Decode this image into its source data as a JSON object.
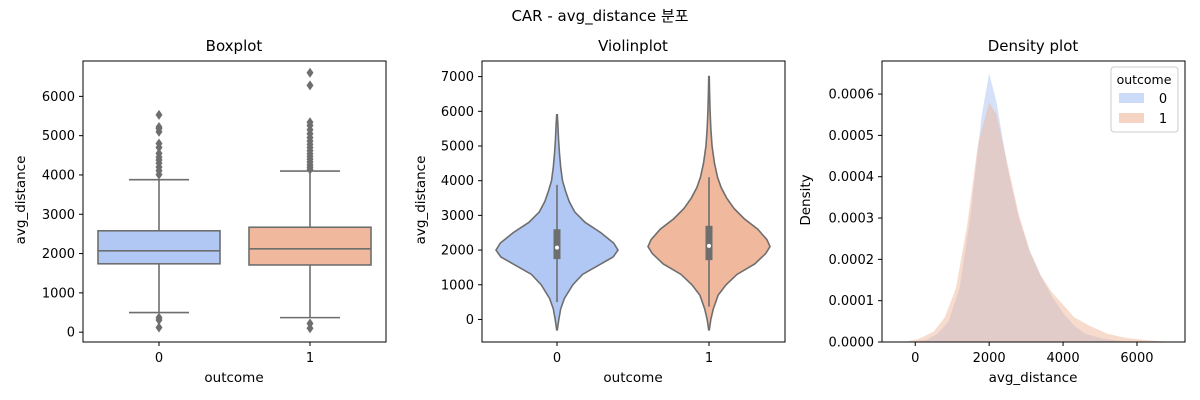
{
  "suptitle": "CAR - avg_distance 분포",
  "colors": {
    "class0": "#b1c8f4",
    "class1": "#f0b89c",
    "edge": "#6e6e6e",
    "axis": "#000000"
  },
  "chart_data": [
    {
      "type": "boxplot",
      "title": "Boxplot",
      "xlabel": "outcome",
      "ylabel": "avg_distance",
      "categories": [
        "0",
        "1"
      ],
      "ylim": [
        -250,
        6900
      ],
      "yticks": [
        "0",
        "1000",
        "2000",
        "3000",
        "4000",
        "5000",
        "6000"
      ],
      "series": [
        {
          "category": "0",
          "whisker_low": 500,
          "q1": 1740,
          "median": 2070,
          "q3": 2580,
          "whisker_high": 3880,
          "outliers": [
            120,
            310,
            370,
            4010,
            4110,
            4200,
            4300,
            4380,
            4450,
            4550,
            4700,
            4800,
            5100,
            5180,
            5220,
            5530
          ]
        },
        {
          "category": "1",
          "whisker_low": 370,
          "q1": 1710,
          "median": 2120,
          "q3": 2670,
          "whisker_high": 4100,
          "outliers": [
            100,
            220,
            4140,
            4200,
            4260,
            4330,
            4400,
            4470,
            4540,
            4620,
            4700,
            4780,
            4860,
            4950,
            5050,
            5150,
            5260,
            5340,
            6280,
            6600
          ]
        }
      ]
    },
    {
      "type": "violin",
      "title": "Violinplot",
      "xlabel": "outcome",
      "ylabel": "avg_distance",
      "categories": [
        "0",
        "1"
      ],
      "ylim": [
        -650,
        7450
      ],
      "yticks": [
        "0",
        "1000",
        "2000",
        "3000",
        "4000",
        "5000",
        "6000",
        "7000"
      ],
      "series": [
        {
          "category": "0",
          "min": -300,
          "max": 5900,
          "q1": 1740,
          "median": 2070,
          "q3": 2600,
          "whisker_low": 500,
          "whisker_high": 3880,
          "density": [
            [
              -300,
              0.005
            ],
            [
              0,
              0.03
            ],
            [
              300,
              0.06
            ],
            [
              600,
              0.12
            ],
            [
              1000,
              0.26
            ],
            [
              1300,
              0.42
            ],
            [
              1600,
              0.72
            ],
            [
              1800,
              0.92
            ],
            [
              2000,
              1.0
            ],
            [
              2200,
              0.93
            ],
            [
              2500,
              0.72
            ],
            [
              2800,
              0.46
            ],
            [
              3100,
              0.29
            ],
            [
              3400,
              0.2
            ],
            [
              3700,
              0.14
            ],
            [
              4000,
              0.09
            ],
            [
              4400,
              0.06
            ],
            [
              4800,
              0.04
            ],
            [
              5200,
              0.025
            ],
            [
              5600,
              0.015
            ],
            [
              5900,
              0.005
            ]
          ]
        },
        {
          "category": "1",
          "min": -300,
          "max": 7000,
          "q1": 1710,
          "median": 2120,
          "q3": 2700,
          "whisker_low": 370,
          "whisker_high": 4100,
          "density": [
            [
              -300,
              0.005
            ],
            [
              0,
              0.03
            ],
            [
              300,
              0.07
            ],
            [
              700,
              0.15
            ],
            [
              1000,
              0.28
            ],
            [
              1300,
              0.46
            ],
            [
              1600,
              0.75
            ],
            [
              1900,
              0.93
            ],
            [
              2100,
              1.0
            ],
            [
              2300,
              0.95
            ],
            [
              2600,
              0.8
            ],
            [
              2900,
              0.58
            ],
            [
              3200,
              0.41
            ],
            [
              3500,
              0.29
            ],
            [
              3800,
              0.2
            ],
            [
              4100,
              0.14
            ],
            [
              4500,
              0.09
            ],
            [
              5000,
              0.05
            ],
            [
              5500,
              0.03
            ],
            [
              6000,
              0.018
            ],
            [
              6500,
              0.01
            ],
            [
              7000,
              0.004
            ]
          ]
        }
      ]
    },
    {
      "type": "area",
      "title": "Density plot",
      "xlabel": "avg_distance",
      "ylabel": "Density",
      "xlim": [
        -900,
        7300
      ],
      "ylim": [
        0,
        0.00068
      ],
      "xticks": [
        0,
        2000,
        4000,
        6000
      ],
      "xtick_labels": [
        "0",
        "2000",
        "4000",
        "6000"
      ],
      "yticks": [
        0,
        0.0001,
        0.0002,
        0.0003,
        0.0004,
        0.0005,
        0.0006
      ],
      "ytick_labels": [
        "0.0000",
        "0.0001",
        "0.0002",
        "0.0003",
        "0.0004",
        "0.0005",
        "0.0006"
      ],
      "legend": {
        "title": "outcome",
        "placement": "top-right"
      },
      "series": [
        {
          "name": "0",
          "points": [
            [
              -100,
              0
            ],
            [
              300,
              5e-06
            ],
            [
              600,
              2e-05
            ],
            [
              900,
              5e-05
            ],
            [
              1200,
              0.00013
            ],
            [
              1500,
              0.00031
            ],
            [
              1800,
              0.00055
            ],
            [
              2000,
              0.00065
            ],
            [
              2200,
              0.00058
            ],
            [
              2500,
              0.00042
            ],
            [
              2800,
              0.0003
            ],
            [
              3100,
              0.00022
            ],
            [
              3400,
              0.00016
            ],
            [
              3700,
              0.00011
            ],
            [
              4000,
              7e-05
            ],
            [
              4300,
              4e-05
            ],
            [
              4600,
              2e-05
            ],
            [
              5000,
              1e-05
            ],
            [
              5400,
              4e-06
            ],
            [
              5800,
              0
            ]
          ]
        },
        {
          "name": "1",
          "points": [
            [
              -300,
              0
            ],
            [
              100,
              8e-06
            ],
            [
              500,
              2.5e-05
            ],
            [
              800,
              6e-05
            ],
            [
              1100,
              0.00013
            ],
            [
              1400,
              0.00028
            ],
            [
              1700,
              0.00048
            ],
            [
              2000,
              0.00058
            ],
            [
              2200,
              0.00055
            ],
            [
              2500,
              0.00043
            ],
            [
              2800,
              0.00031
            ],
            [
              3100,
              0.00022
            ],
            [
              3400,
              0.00016
            ],
            [
              3700,
              0.00012
            ],
            [
              4000,
              9e-05
            ],
            [
              4300,
              6e-05
            ],
            [
              4700,
              4e-05
            ],
            [
              5200,
              2e-05
            ],
            [
              5700,
              1e-05
            ],
            [
              6300,
              4e-06
            ],
            [
              7000,
              0
            ]
          ]
        }
      ]
    }
  ]
}
